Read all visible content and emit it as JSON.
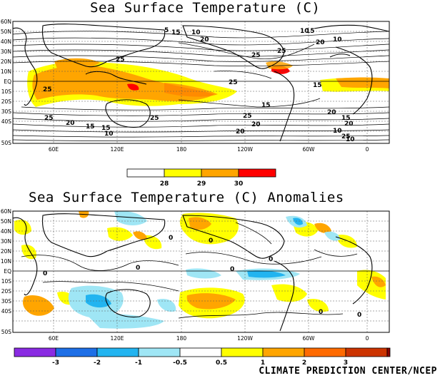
{
  "top_title": "Sea Surface Temperature (C)",
  "bottom_title": "Sea Surface Temperature (C) Anomalies",
  "credit": "CLIMATE PREDICTION CENTER/NCEP",
  "lat_labels": [
    "60N",
    "50N",
    "40N",
    "30N",
    "20N",
    "10N",
    "EQ",
    "10S",
    "20S",
    "30S",
    "40S",
    "50S"
  ],
  "lon_labels": [
    "60E",
    "120E",
    "180",
    "120W",
    "60W",
    "0"
  ],
  "sst_contour_labels": [
    "25",
    "25",
    "20",
    "15",
    "10",
    "5",
    "10",
    "15",
    "20",
    "25",
    "15",
    "20",
    "25",
    "25",
    "20",
    "15",
    "10",
    "25",
    "25",
    "20",
    "15",
    "10",
    "25",
    "20",
    "15",
    "10",
    "25",
    "20",
    "15",
    "10"
  ],
  "sst_colorbar": {
    "labels": [
      "28",
      "29",
      "30"
    ],
    "colors": [
      "#ffffff",
      "#ffff00",
      "#ffa500",
      "#ff8000",
      "#ff0000"
    ]
  },
  "anom_colorbar": {
    "labels": [
      "-3",
      "-2",
      "-1",
      "-0.5",
      "0.5",
      "1",
      "2",
      "3"
    ],
    "colors": [
      "#8a2be2",
      "#1e6fe6",
      "#22b4f0",
      "#9fe6f5",
      "#ffffff",
      "#ffff00",
      "#ffa500",
      "#ff6a00",
      "#cc3300",
      "#8b0000"
    ]
  },
  "anom_contour_labels": [
    "0",
    "0",
    "0",
    "0",
    "0",
    "0",
    "0",
    "0"
  ]
}
